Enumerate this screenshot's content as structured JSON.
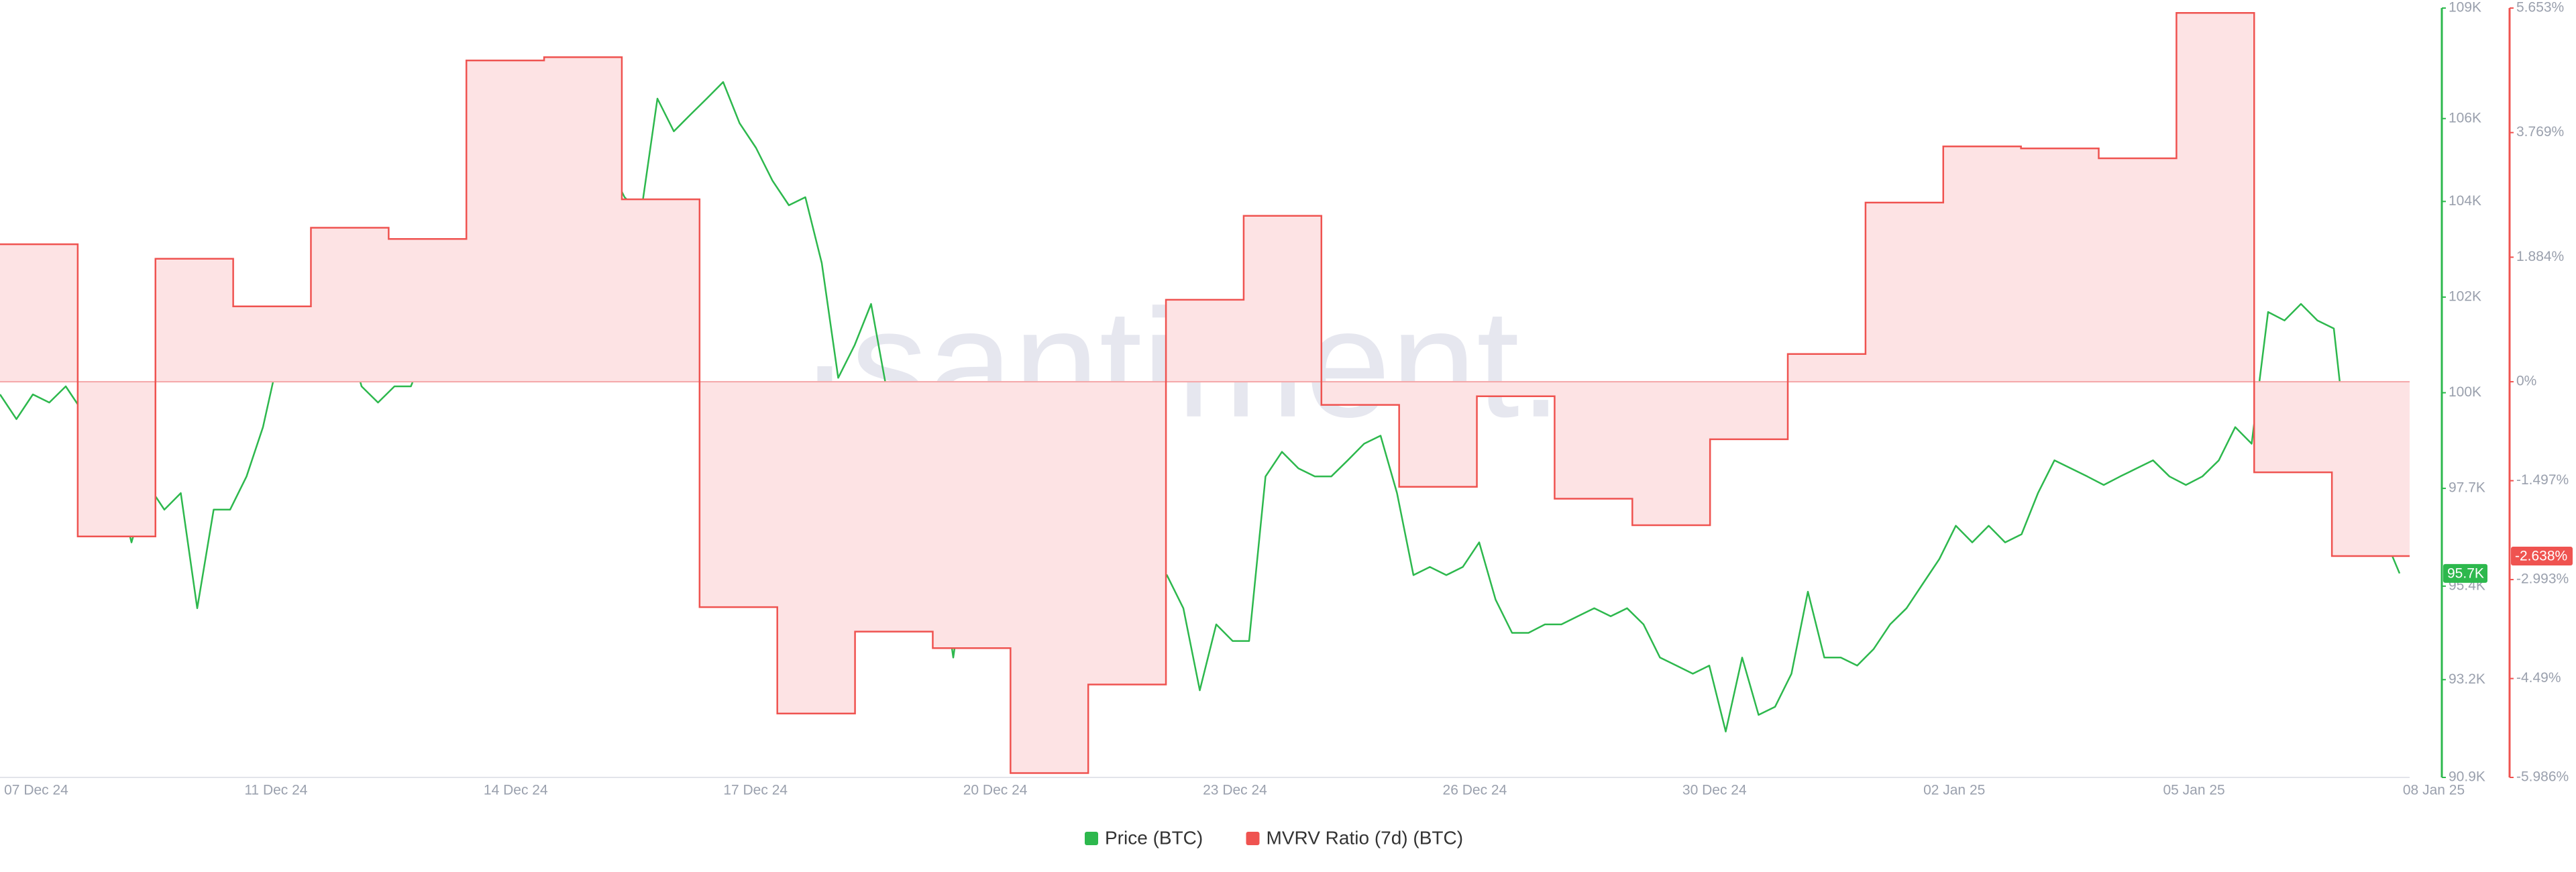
{
  "chart_data": {
    "type": "line",
    "watermark": "·santiment.",
    "xtick_labels": [
      "07 Dec 24",
      "11 Dec 24",
      "14 Dec 24",
      "17 Dec 24",
      "20 Dec 24",
      "23 Dec 24",
      "26 Dec 24",
      "30 Dec 24",
      "02 Jan 25",
      "05 Jan 25",
      "08 Jan 25"
    ],
    "ylim": [
      90900,
      109000
    ],
    "yticks": [
      {
        "value": 90900,
        "label": "90.9K"
      },
      {
        "value": 93200,
        "label": "93.2K"
      },
      {
        "value": 95400,
        "label": "95.4K"
      },
      {
        "value": 97700,
        "label": "97.7K"
      },
      {
        "value": 99950,
        "label": "100K"
      },
      {
        "value": 102200,
        "label": "102K"
      },
      {
        "value": 104450,
        "label": "104K"
      },
      {
        "value": 106400,
        "label": "106K"
      },
      {
        "value": 109000,
        "label": "109K"
      }
    ],
    "y2lim": [
      -5.986,
      5.653
    ],
    "y2ticks": [
      {
        "value": -5.986,
        "label": "-5.986%"
      },
      {
        "value": -4.49,
        "label": "-4.49%"
      },
      {
        "value": -2.993,
        "label": "-2.993%"
      },
      {
        "value": -1.497,
        "label": "-1.497%"
      },
      {
        "value": 0,
        "label": "0%"
      },
      {
        "value": 1.884,
        "label": "1.884%"
      },
      {
        "value": 3.769,
        "label": "3.769%"
      },
      {
        "value": 5.653,
        "label": "5.653%"
      }
    ],
    "series": [
      {
        "name": "Price (BTC)",
        "color": "#2db84d",
        "axis": "y",
        "style": "line",
        "end_label": "95.7K",
        "values": [
          99910,
          99330,
          99910,
          99720,
          100100,
          99520,
          99140,
          97980,
          96430,
          97780,
          97200,
          97590,
          94880,
          97200,
          97200,
          97980,
          99140,
          100880,
          101460,
          100490,
          100880,
          101460,
          100100,
          99720,
          100100,
          100100,
          101070,
          101270,
          101850,
          101650,
          101270,
          101270,
          101460,
          102040,
          102230,
          102620,
          103000,
          105330,
          104550,
          104170,
          106870,
          106100,
          106490,
          106870,
          107260,
          106290,
          105710,
          104940,
          104360,
          104550,
          103000,
          100300,
          101070,
          102040,
          99910,
          96820,
          97590,
          96430,
          93720,
          96430,
          97200,
          97980,
          98750,
          97590,
          97200,
          96820,
          96430,
          96430,
          95660,
          95270,
          94880,
          95660,
          94880,
          92950,
          94500,
          94110,
          94110,
          97980,
          98560,
          98170,
          97980,
          97980,
          98360,
          98750,
          98940,
          97590,
          95660,
          95850,
          95660,
          95850,
          96430,
          95080,
          94300,
          94300,
          94500,
          94500,
          94690,
          94880,
          94690,
          94880,
          94500,
          93720,
          93530,
          93340,
          93530,
          91980,
          93720,
          92370,
          92560,
          93340,
          95270,
          93720,
          93720,
          93530,
          93920,
          94500,
          94880,
          95460,
          96040,
          96820,
          96430,
          96820,
          96430,
          96620,
          97590,
          98360,
          98170,
          97980,
          97780,
          97980,
          98170,
          98360,
          97980,
          97780,
          97980,
          98360,
          99140,
          98750,
          101850,
          101650,
          102040,
          101650,
          101460,
          97980,
          96820,
          96620,
          95700
        ]
      },
      {
        "name": "MVRV Ratio (7d) (BTC)",
        "color": "#ef5350",
        "fill": "#fde3e4",
        "axis": "y2",
        "style": "step",
        "end_label": "-2.638%",
        "values": [
          2.08,
          -2.34,
          1.86,
          1.14,
          2.33,
          2.16,
          4.86,
          4.91,
          2.76,
          -3.41,
          -5.02,
          -3.78,
          -4.03,
          -5.92,
          -4.58,
          1.24,
          2.51,
          -0.35,
          -1.59,
          -0.22,
          -1.77,
          -2.17,
          -0.87,
          0.42,
          2.71,
          3.56,
          3.53,
          3.38,
          5.58,
          -1.37,
          -2.638
        ]
      }
    ]
  }
}
